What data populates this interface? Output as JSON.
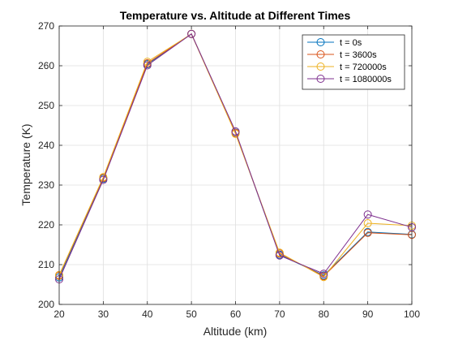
{
  "chart_data": {
    "type": "line",
    "title": "Temperature vs. Altitude at Different Times",
    "xlabel": "Altitude (km)",
    "ylabel": "Temperature (K)",
    "xlim": [
      20,
      100
    ],
    "ylim": [
      200,
      270
    ],
    "xticks": [
      20,
      30,
      40,
      50,
      60,
      70,
      80,
      90,
      100
    ],
    "yticks": [
      200,
      210,
      220,
      230,
      240,
      250,
      260,
      270
    ],
    "grid": true,
    "legend_position": "top-right",
    "x": [
      20,
      30,
      40,
      50,
      60,
      70,
      80,
      90,
      100
    ],
    "series": [
      {
        "name": "t = 0s",
        "color": "#0072BD",
        "values": [
          206.8,
          231.6,
          260.4,
          268.0,
          243.2,
          212.5,
          207.3,
          218.2,
          217.6
        ]
      },
      {
        "name": "t = 3600s",
        "color": "#D95319",
        "values": [
          207.2,
          231.8,
          260.6,
          268.0,
          243.1,
          212.8,
          207.1,
          218.0,
          217.5
        ]
      },
      {
        "name": "t = 720000s",
        "color": "#EDB120",
        "values": [
          207.4,
          232.0,
          261.0,
          268.0,
          242.9,
          213.0,
          206.9,
          220.4,
          219.8
        ]
      },
      {
        "name": "t = 1080000s",
        "color": "#7E2F8E",
        "values": [
          206.3,
          231.3,
          260.1,
          268.0,
          243.5,
          212.3,
          207.7,
          222.6,
          219.4
        ]
      }
    ]
  }
}
